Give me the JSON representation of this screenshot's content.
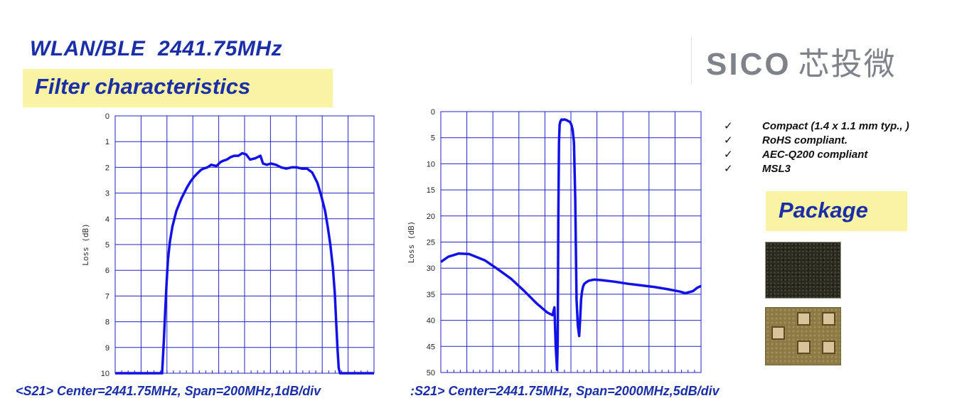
{
  "header": {
    "title": "WLAN/BLE  2441.75MHz",
    "subtitle": "Filter characteristics",
    "logo_latin": "SICO",
    "logo_cjk": "芯投微"
  },
  "features": [
    {
      "check": "✓",
      "text": "Compact (1.4 x 1.1 mm typ., )"
    },
    {
      "check": "✓",
      "text": "RoHS compliant."
    },
    {
      "check": "✓",
      "text": "AEC-Q200 compliant"
    },
    {
      "check": "✓",
      "text": "MSL3"
    }
  ],
  "package_label": "Package",
  "colors": {
    "title": "#1a2ea8",
    "highlight": "#fbf3a4",
    "trace": "#1212e8",
    "grid": "#2323c8"
  },
  "chart_data": [
    {
      "type": "line",
      "caption": "<S21> Center=2441.75MHz, Span=200MHz,1dB/div",
      "ylabel": "Loss (dB)",
      "xlabel": "",
      "xlim": [
        2341.75,
        2541.75
      ],
      "ylim": [
        0,
        10
      ],
      "y_inverted": true,
      "yticks": [
        "0",
        "1",
        "2",
        "3",
        "4",
        "5",
        "6",
        "7",
        "8",
        "9",
        "10"
      ],
      "x_divisions": 10,
      "grid": true,
      "series": [
        {
          "x": [
            2341.75,
            2378.0,
            2379.5,
            2380.5,
            2381.5,
            2382.5,
            2384.0,
            2386.0,
            2389.0,
            2393.0,
            2397.0,
            2400.0,
            2403.0,
            2406.0,
            2408.0,
            2410.0,
            2413.0,
            2416.0,
            2420.0,
            2423.0,
            2425.0,
            2428.0,
            2431.0,
            2434.0,
            2437.0,
            2440.0,
            2443.0,
            2446.0,
            2450.0,
            2454.0,
            2456.0,
            2459.0,
            2462.0,
            2466.0,
            2470.0,
            2474.0,
            2478.0,
            2482.0,
            2486.0,
            2490.0,
            2494.0,
            2498.0,
            2501.0,
            2504.0,
            2506.0,
            2508.0,
            2510.0,
            2511.5,
            2512.5,
            2513.5,
            2514.5,
            2515.5,
            2541.75
          ],
          "y": [
            10.0,
            10.0,
            8.6,
            7.5,
            6.5,
            5.6,
            4.9,
            4.3,
            3.7,
            3.2,
            2.8,
            2.55,
            2.35,
            2.2,
            2.1,
            2.05,
            2.0,
            1.9,
            1.95,
            1.8,
            1.75,
            1.7,
            1.6,
            1.55,
            1.55,
            1.45,
            1.5,
            1.7,
            1.65,
            1.55,
            1.85,
            1.9,
            1.85,
            1.9,
            2.0,
            2.05,
            2.0,
            2.0,
            2.05,
            2.05,
            2.2,
            2.6,
            3.1,
            3.7,
            4.3,
            5.0,
            5.9,
            6.9,
            8.0,
            9.0,
            9.8,
            10.0,
            10.0
          ]
        }
      ]
    },
    {
      "type": "line",
      "caption": ":S21> Center=2441.75MHz, Span=2000MHz,5dB/div",
      "ylabel": "Loss (dB)",
      "xlabel": "",
      "xlim": [
        1441.75,
        3441.75
      ],
      "ylim": [
        0,
        50
      ],
      "y_inverted": true,
      "yticks": [
        "0",
        "5",
        "10",
        "15",
        "20",
        "25",
        "30",
        "35",
        "40",
        "45",
        "50"
      ],
      "x_divisions": 10,
      "grid": true,
      "series": [
        {
          "x": [
            1441.75,
            1500.0,
            1580.0,
            1660.0,
            1780.0,
            1880.0,
            1980.0,
            2080.0,
            2180.0,
            2260.0,
            2300.0,
            2315.0,
            2325.0,
            2335.0,
            2340.0,
            2345.0,
            2350.0,
            2355.0,
            2362.0,
            2370.0,
            2380.0,
            2390.0,
            2405.0,
            2420.0,
            2435.0,
            2445.0,
            2455.0,
            2465.0,
            2475.0,
            2485.0,
            2495.0,
            2505.0,
            2512.0,
            2520.0,
            2527.0,
            2535.0,
            2545.0,
            2560.0,
            2580.0,
            2620.0,
            2680.0,
            2780.0,
            2880.0,
            2980.0,
            3080.0,
            3180.0,
            3280.0,
            3320.0,
            3350.0,
            3380.0,
            3410.0,
            3441.75
          ],
          "y": [
            28.8,
            27.8,
            27.2,
            27.3,
            28.5,
            30.2,
            32.0,
            34.3,
            36.8,
            38.5,
            39.0,
            37.5,
            45.0,
            49.5,
            44.0,
            20.0,
            6.0,
            2.5,
            1.8,
            1.5,
            1.6,
            1.5,
            1.6,
            1.8,
            2.0,
            2.5,
            3.5,
            6.0,
            17.0,
            36.0,
            41.0,
            43.0,
            40.0,
            36.0,
            34.5,
            33.5,
            33.0,
            32.7,
            32.4,
            32.2,
            32.3,
            32.6,
            33.0,
            33.3,
            33.6,
            34.0,
            34.5,
            34.8,
            34.6,
            34.4,
            33.8,
            33.4
          ]
        }
      ]
    }
  ]
}
